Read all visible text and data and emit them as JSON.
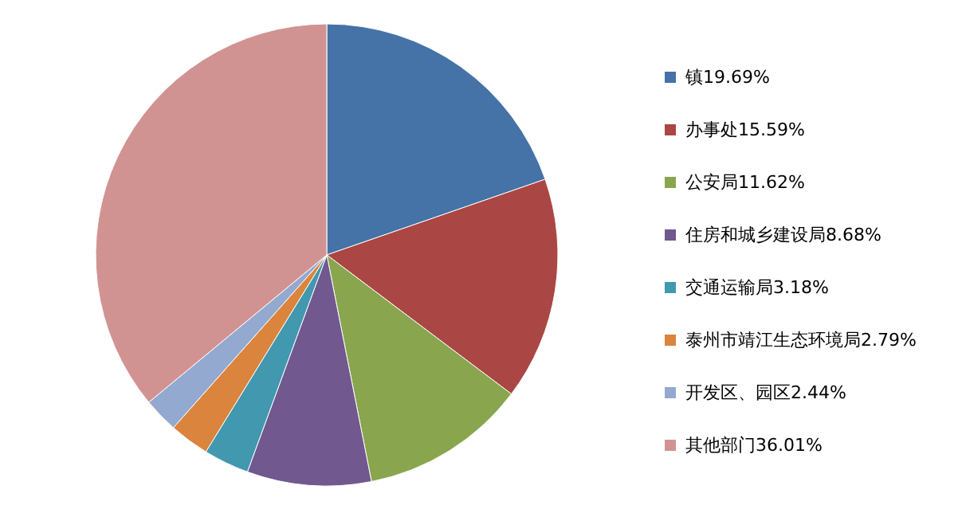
{
  "chart_data": {
    "type": "pie",
    "categories": [
      "镇19.69%",
      "办事处15.59%",
      "公安局11.62%",
      "住房和城乡建设局8.68%",
      "交通运输局3.18%",
      "泰州市靖江生态环境局2.79%",
      "开发区、园区2.44%",
      "其他部门36.01%"
    ],
    "values": [
      19.69,
      15.59,
      11.62,
      8.68,
      3.18,
      2.79,
      2.44,
      36.01
    ],
    "colors": [
      "#4572a7",
      "#aa4643",
      "#89a54e",
      "#71588f",
      "#4198af",
      "#db843d",
      "#93a9cf",
      "#d19392"
    ],
    "legend": "right"
  }
}
